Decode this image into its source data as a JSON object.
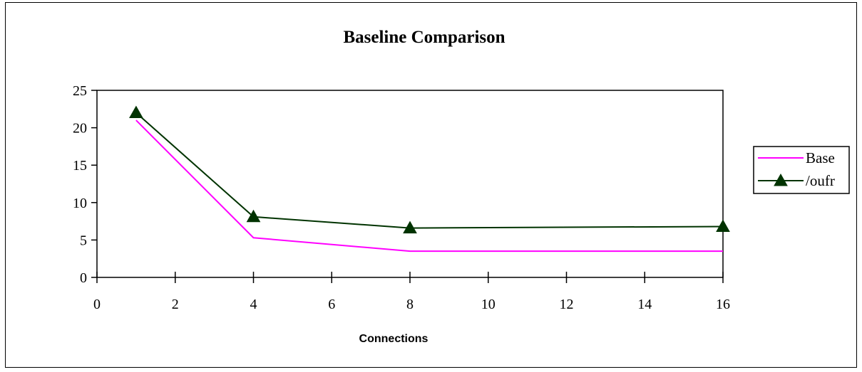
{
  "chart_data": {
    "type": "line",
    "title": "Baseline Comparison",
    "xlabel": "Connections",
    "ylabel": "",
    "xlim": [
      0,
      16
    ],
    "ylim": [
      0,
      25
    ],
    "xticks": [
      0,
      2,
      4,
      6,
      8,
      10,
      12,
      14,
      16
    ],
    "yticks": [
      0,
      5,
      10,
      15,
      20,
      25
    ],
    "grid": false,
    "legend_position": "right",
    "series": [
      {
        "name": "Base",
        "color": "#ff00ff",
        "marker": "none",
        "x": [
          1,
          4,
          8,
          16
        ],
        "y": [
          21,
          5.3,
          3.5,
          3.5
        ]
      },
      {
        "name": "/oufr",
        "color": "#003300",
        "marker": "triangle",
        "x": [
          1,
          4,
          8,
          16
        ],
        "y": [
          22,
          8.1,
          6.6,
          6.8
        ]
      }
    ]
  }
}
